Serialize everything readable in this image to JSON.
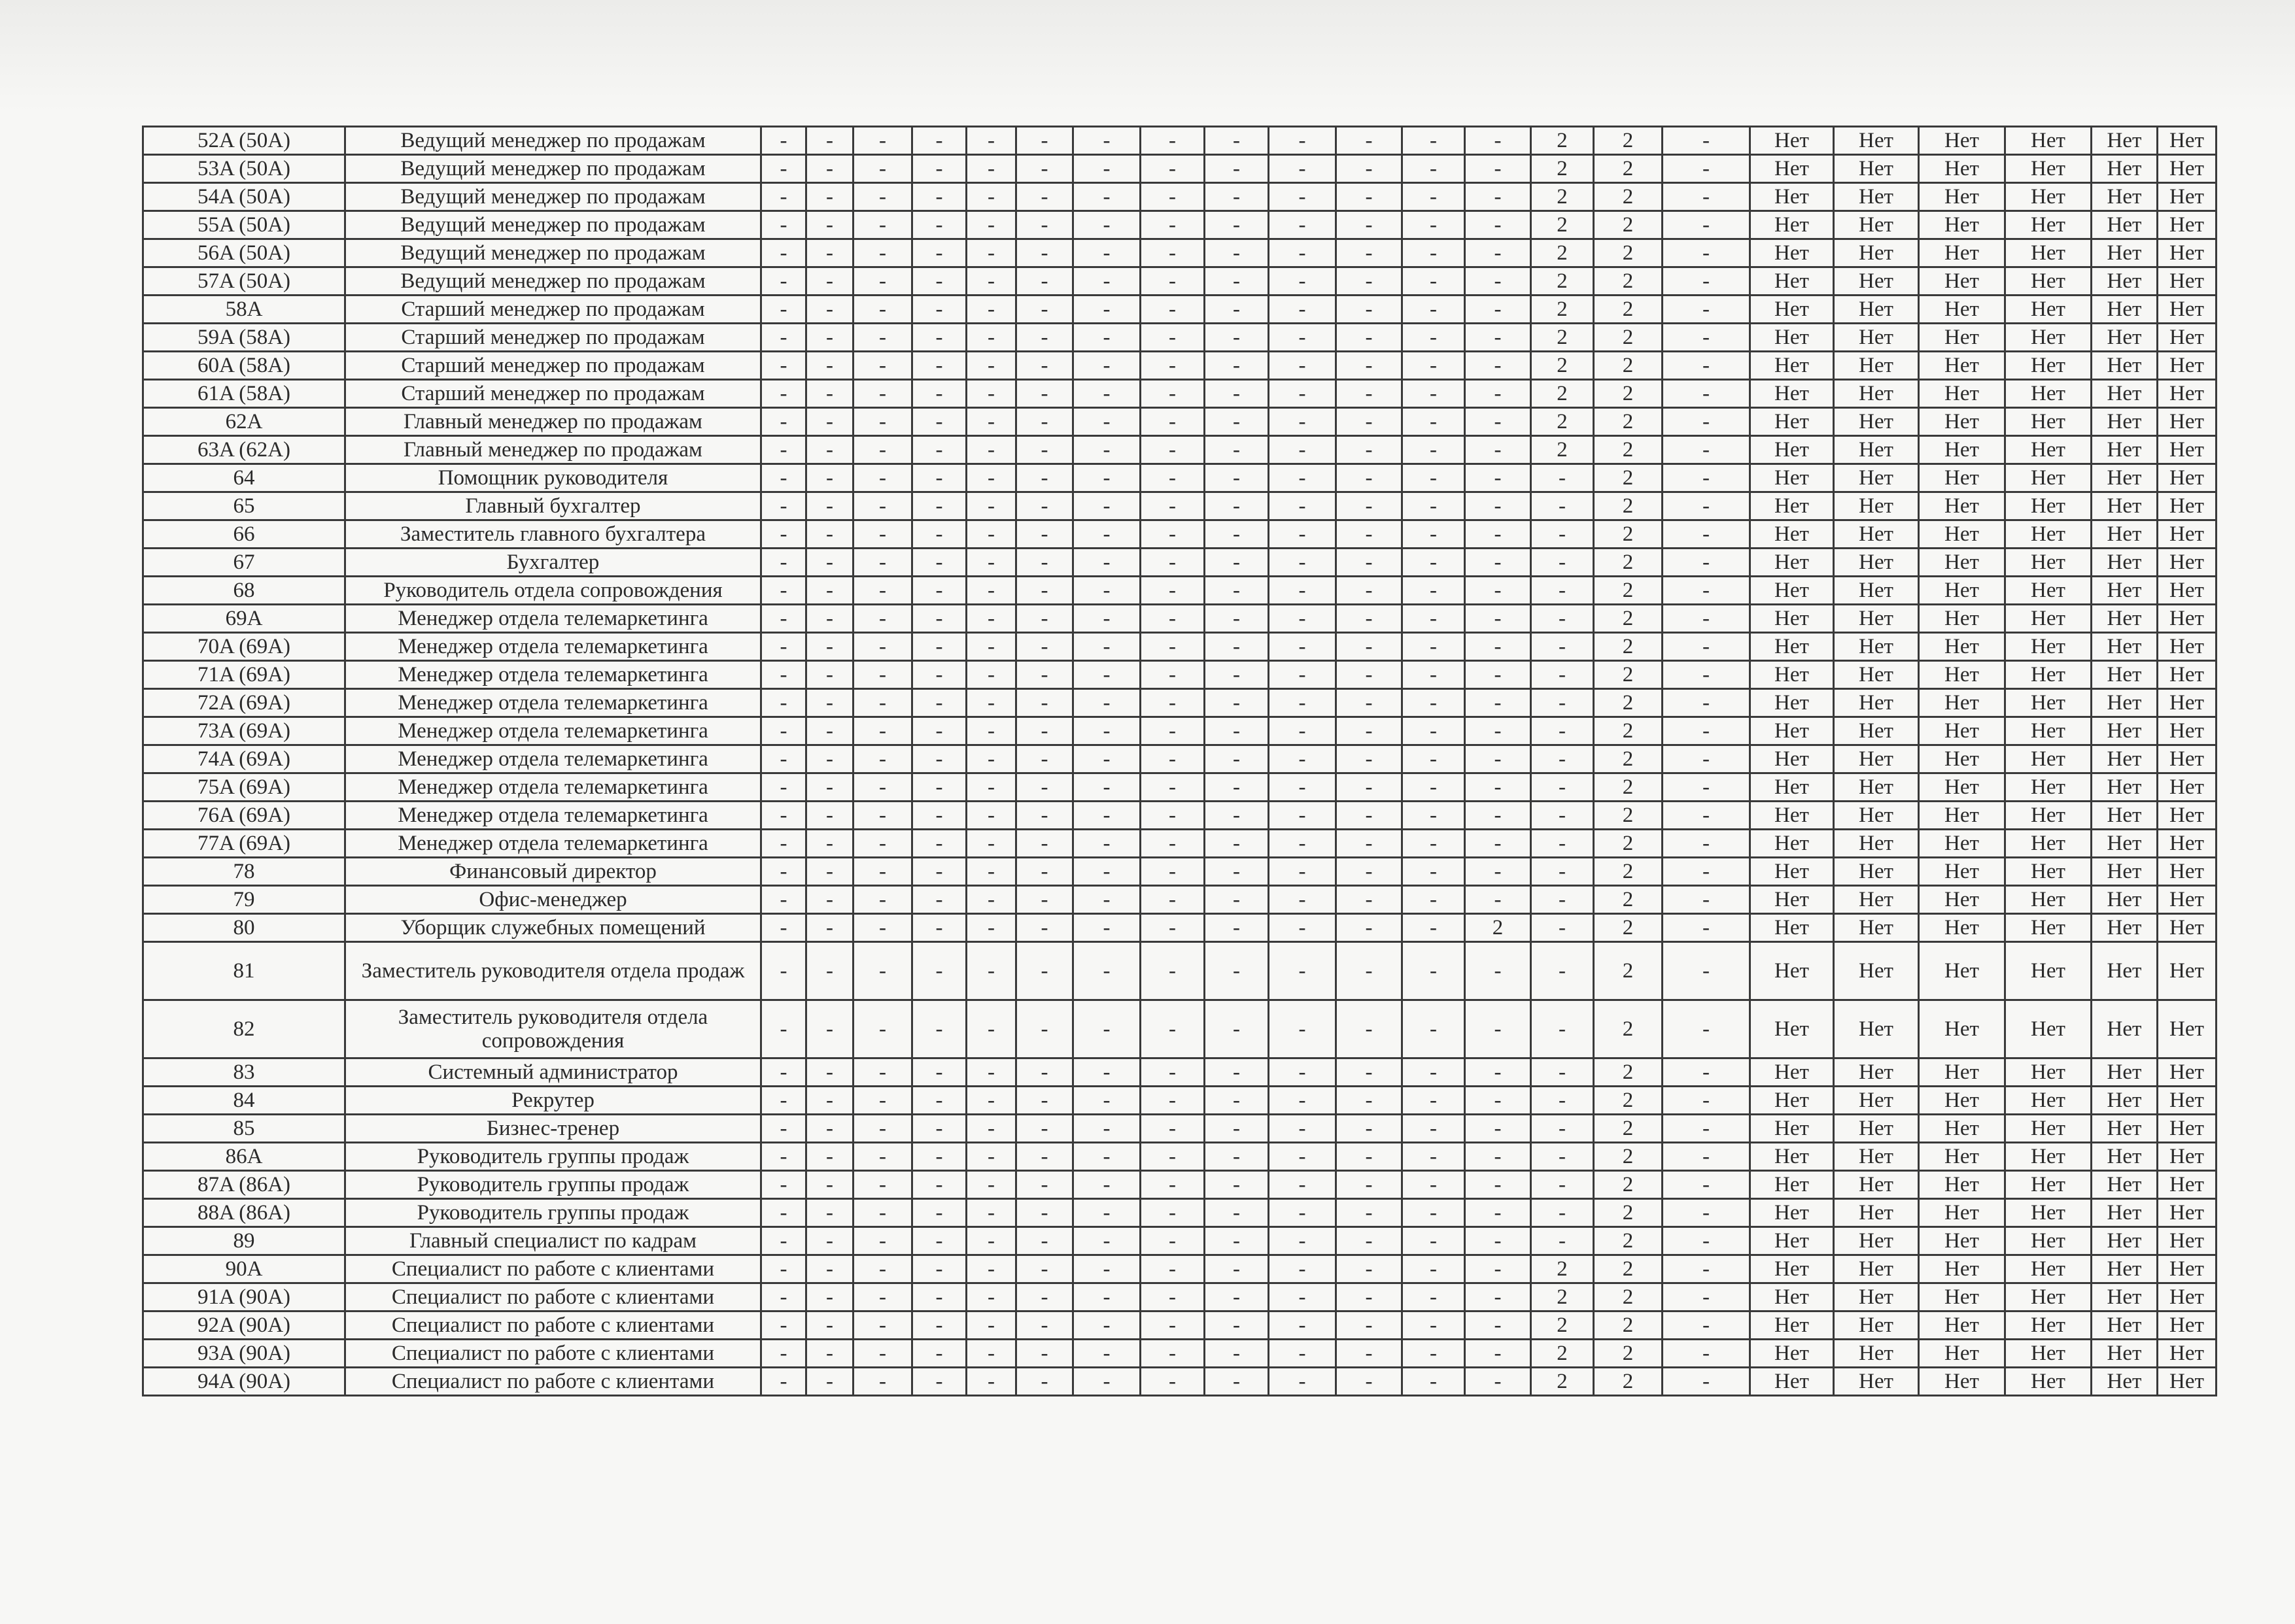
{
  "table": {
    "rows": [
      {
        "id": "52A (50A)",
        "name": "Ведущий менеджер по продажам",
        "cells": [
          "-",
          "-",
          "-",
          "-",
          "-",
          "-",
          "-",
          "-",
          "-",
          "-",
          "-",
          "-",
          "-",
          "2",
          "2",
          "-",
          "Нет",
          "Нет",
          "Нет",
          "Нет",
          "Нет",
          "Нет"
        ]
      },
      {
        "id": "53A (50A)",
        "name": "Ведущий менеджер по продажам",
        "cells": [
          "-",
          "-",
          "-",
          "-",
          "-",
          "-",
          "-",
          "-",
          "-",
          "-",
          "-",
          "-",
          "-",
          "2",
          "2",
          "-",
          "Нет",
          "Нет",
          "Нет",
          "Нет",
          "Нет",
          "Нет"
        ]
      },
      {
        "id": "54A (50A)",
        "name": "Ведущий менеджер по продажам",
        "cells": [
          "-",
          "-",
          "-",
          "-",
          "-",
          "-",
          "-",
          "-",
          "-",
          "-",
          "-",
          "-",
          "-",
          "2",
          "2",
          "-",
          "Нет",
          "Нет",
          "Нет",
          "Нет",
          "Нет",
          "Нет"
        ]
      },
      {
        "id": "55A (50A)",
        "name": "Ведущий менеджер по продажам",
        "cells": [
          "-",
          "-",
          "-",
          "-",
          "-",
          "-",
          "-",
          "-",
          "-",
          "-",
          "-",
          "-",
          "-",
          "2",
          "2",
          "-",
          "Нет",
          "Нет",
          "Нет",
          "Нет",
          "Нет",
          "Нет"
        ]
      },
      {
        "id": "56A (50A)",
        "name": "Ведущий менеджер по продажам",
        "cells": [
          "-",
          "-",
          "-",
          "-",
          "-",
          "-",
          "-",
          "-",
          "-",
          "-",
          "-",
          "-",
          "-",
          "2",
          "2",
          "-",
          "Нет",
          "Нет",
          "Нет",
          "Нет",
          "Нет",
          "Нет"
        ]
      },
      {
        "id": "57A (50A)",
        "name": "Ведущий менеджер по продажам",
        "cells": [
          "-",
          "-",
          "-",
          "-",
          "-",
          "-",
          "-",
          "-",
          "-",
          "-",
          "-",
          "-",
          "-",
          "2",
          "2",
          "-",
          "Нет",
          "Нет",
          "Нет",
          "Нет",
          "Нет",
          "Нет"
        ]
      },
      {
        "id": "58A",
        "name": "Старший менеджер по продажам",
        "cells": [
          "-",
          "-",
          "-",
          "-",
          "-",
          "-",
          "-",
          "-",
          "-",
          "-",
          "-",
          "-",
          "-",
          "2",
          "2",
          "-",
          "Нет",
          "Нет",
          "Нет",
          "Нет",
          "Нет",
          "Нет"
        ]
      },
      {
        "id": "59A (58A)",
        "name": "Старший менеджер по продажам",
        "cells": [
          "-",
          "-",
          "-",
          "-",
          "-",
          "-",
          "-",
          "-",
          "-",
          "-",
          "-",
          "-",
          "-",
          "2",
          "2",
          "-",
          "Нет",
          "Нет",
          "Нет",
          "Нет",
          "Нет",
          "Нет"
        ]
      },
      {
        "id": "60A (58A)",
        "name": "Старший менеджер по продажам",
        "cells": [
          "-",
          "-",
          "-",
          "-",
          "-",
          "-",
          "-",
          "-",
          "-",
          "-",
          "-",
          "-",
          "-",
          "2",
          "2",
          "-",
          "Нет",
          "Нет",
          "Нет",
          "Нет",
          "Нет",
          "Нет"
        ]
      },
      {
        "id": "61A (58A)",
        "name": "Старший менеджер по продажам",
        "cells": [
          "-",
          "-",
          "-",
          "-",
          "-",
          "-",
          "-",
          "-",
          "-",
          "-",
          "-",
          "-",
          "-",
          "2",
          "2",
          "-",
          "Нет",
          "Нет",
          "Нет",
          "Нет",
          "Нет",
          "Нет"
        ]
      },
      {
        "id": "62A",
        "name": "Главный менеджер по продажам",
        "cells": [
          "-",
          "-",
          "-",
          "-",
          "-",
          "-",
          "-",
          "-",
          "-",
          "-",
          "-",
          "-",
          "-",
          "2",
          "2",
          "-",
          "Нет",
          "Нет",
          "Нет",
          "Нет",
          "Нет",
          "Нет"
        ]
      },
      {
        "id": "63A (62A)",
        "name": "Главный менеджер по продажам",
        "cells": [
          "-",
          "-",
          "-",
          "-",
          "-",
          "-",
          "-",
          "-",
          "-",
          "-",
          "-",
          "-",
          "-",
          "2",
          "2",
          "-",
          "Нет",
          "Нет",
          "Нет",
          "Нет",
          "Нет",
          "Нет"
        ]
      },
      {
        "id": "64",
        "name": "Помощник руководителя",
        "cells": [
          "-",
          "-",
          "-",
          "-",
          "-",
          "-",
          "-",
          "-",
          "-",
          "-",
          "-",
          "-",
          "-",
          "-",
          "2",
          "-",
          "Нет",
          "Нет",
          "Нет",
          "Нет",
          "Нет",
          "Нет"
        ]
      },
      {
        "id": "65",
        "name": "Главный бухгалтер",
        "cells": [
          "-",
          "-",
          "-",
          "-",
          "-",
          "-",
          "-",
          "-",
          "-",
          "-",
          "-",
          "-",
          "-",
          "-",
          "2",
          "-",
          "Нет",
          "Нет",
          "Нет",
          "Нет",
          "Нет",
          "Нет"
        ]
      },
      {
        "id": "66",
        "name": "Заместитель главного бухгалтера",
        "cells": [
          "-",
          "-",
          "-",
          "-",
          "-",
          "-",
          "-",
          "-",
          "-",
          "-",
          "-",
          "-",
          "-",
          "-",
          "2",
          "-",
          "Нет",
          "Нет",
          "Нет",
          "Нет",
          "Нет",
          "Нет"
        ]
      },
      {
        "id": "67",
        "name": "Бухгалтер",
        "cells": [
          "-",
          "-",
          "-",
          "-",
          "-",
          "-",
          "-",
          "-",
          "-",
          "-",
          "-",
          "-",
          "-",
          "-",
          "2",
          "-",
          "Нет",
          "Нет",
          "Нет",
          "Нет",
          "Нет",
          "Нет"
        ]
      },
      {
        "id": "68",
        "name": "Руководитель отдела сопровождения",
        "cells": [
          "-",
          "-",
          "-",
          "-",
          "-",
          "-",
          "-",
          "-",
          "-",
          "-",
          "-",
          "-",
          "-",
          "-",
          "2",
          "-",
          "Нет",
          "Нет",
          "Нет",
          "Нет",
          "Нет",
          "Нет"
        ]
      },
      {
        "id": "69A",
        "name": "Менеджер отдела телемаркетинга",
        "cells": [
          "-",
          "-",
          "-",
          "-",
          "-",
          "-",
          "-",
          "-",
          "-",
          "-",
          "-",
          "-",
          "-",
          "-",
          "2",
          "-",
          "Нет",
          "Нет",
          "Нет",
          "Нет",
          "Нет",
          "Нет"
        ]
      },
      {
        "id": "70A (69A)",
        "name": "Менеджер отдела телемаркетинга",
        "cells": [
          "-",
          "-",
          "-",
          "-",
          "-",
          "-",
          "-",
          "-",
          "-",
          "-",
          "-",
          "-",
          "-",
          "-",
          "2",
          "-",
          "Нет",
          "Нет",
          "Нет",
          "Нет",
          "Нет",
          "Нет"
        ]
      },
      {
        "id": "71A (69A)",
        "name": "Менеджер отдела телемаркетинга",
        "cells": [
          "-",
          "-",
          "-",
          "-",
          "-",
          "-",
          "-",
          "-",
          "-",
          "-",
          "-",
          "-",
          "-",
          "-",
          "2",
          "-",
          "Нет",
          "Нет",
          "Нет",
          "Нет",
          "Нет",
          "Нет"
        ]
      },
      {
        "id": "72A (69A)",
        "name": "Менеджер отдела телемаркетинга",
        "cells": [
          "-",
          "-",
          "-",
          "-",
          "-",
          "-",
          "-",
          "-",
          "-",
          "-",
          "-",
          "-",
          "-",
          "-",
          "2",
          "-",
          "Нет",
          "Нет",
          "Нет",
          "Нет",
          "Нет",
          "Нет"
        ]
      },
      {
        "id": "73A (69A)",
        "name": "Менеджер отдела телемаркетинга",
        "cells": [
          "-",
          "-",
          "-",
          "-",
          "-",
          "-",
          "-",
          "-",
          "-",
          "-",
          "-",
          "-",
          "-",
          "-",
          "2",
          "-",
          "Нет",
          "Нет",
          "Нет",
          "Нет",
          "Нет",
          "Нет"
        ]
      },
      {
        "id": "74A (69A)",
        "name": "Менеджер отдела телемаркетинга",
        "cells": [
          "-",
          "-",
          "-",
          "-",
          "-",
          "-",
          "-",
          "-",
          "-",
          "-",
          "-",
          "-",
          "-",
          "-",
          "2",
          "-",
          "Нет",
          "Нет",
          "Нет",
          "Нет",
          "Нет",
          "Нет"
        ]
      },
      {
        "id": "75A (69A)",
        "name": "Менеджер отдела телемаркетинга",
        "cells": [
          "-",
          "-",
          "-",
          "-",
          "-",
          "-",
          "-",
          "-",
          "-",
          "-",
          "-",
          "-",
          "-",
          "-",
          "2",
          "-",
          "Нет",
          "Нет",
          "Нет",
          "Нет",
          "Нет",
          "Нет"
        ]
      },
      {
        "id": "76A (69A)",
        "name": "Менеджер отдела телемаркетинга",
        "cells": [
          "-",
          "-",
          "-",
          "-",
          "-",
          "-",
          "-",
          "-",
          "-",
          "-",
          "-",
          "-",
          "-",
          "-",
          "2",
          "-",
          "Нет",
          "Нет",
          "Нет",
          "Нет",
          "Нет",
          "Нет"
        ]
      },
      {
        "id": "77A (69A)",
        "name": "Менеджер отдела телемаркетинга",
        "cells": [
          "-",
          "-",
          "-",
          "-",
          "-",
          "-",
          "-",
          "-",
          "-",
          "-",
          "-",
          "-",
          "-",
          "-",
          "2",
          "-",
          "Нет",
          "Нет",
          "Нет",
          "Нет",
          "Нет",
          "Нет"
        ]
      },
      {
        "id": "78",
        "name": "Финансовый директор",
        "cells": [
          "-",
          "-",
          "-",
          "-",
          "-",
          "-",
          "-",
          "-",
          "-",
          "-",
          "-",
          "-",
          "-",
          "-",
          "2",
          "-",
          "Нет",
          "Нет",
          "Нет",
          "Нет",
          "Нет",
          "Нет"
        ]
      },
      {
        "id": "79",
        "name": "Офис-менеджер",
        "cells": [
          "-",
          "-",
          "-",
          "-",
          "-",
          "-",
          "-",
          "-",
          "-",
          "-",
          "-",
          "-",
          "-",
          "-",
          "2",
          "-",
          "Нет",
          "Нет",
          "Нет",
          "Нет",
          "Нет",
          "Нет"
        ]
      },
      {
        "id": "80",
        "name": "Уборщик служебных помещений",
        "cells": [
          "-",
          "-",
          "-",
          "-",
          "-",
          "-",
          "-",
          "-",
          "-",
          "-",
          "-",
          "-",
          "2",
          "-",
          "2",
          "-",
          "Нет",
          "Нет",
          "Нет",
          "Нет",
          "Нет",
          "Нет"
        ]
      },
      {
        "id": "81",
        "name": "Заместитель руководителя отдела продаж",
        "double": true,
        "cells": [
          "-",
          "-",
          "-",
          "-",
          "-",
          "-",
          "-",
          "-",
          "-",
          "-",
          "-",
          "-",
          "-",
          "-",
          "2",
          "-",
          "Нет",
          "Нет",
          "Нет",
          "Нет",
          "Нет",
          "Нет"
        ]
      },
      {
        "id": "82",
        "name": "Заместитель руководителя отдела сопровождения",
        "double": true,
        "cells": [
          "-",
          "-",
          "-",
          "-",
          "-",
          "-",
          "-",
          "-",
          "-",
          "-",
          "-",
          "-",
          "-",
          "-",
          "2",
          "-",
          "Нет",
          "Нет",
          "Нет",
          "Нет",
          "Нет",
          "Нет"
        ]
      },
      {
        "id": "83",
        "name": "Системный администратор",
        "cells": [
          "-",
          "-",
          "-",
          "-",
          "-",
          "-",
          "-",
          "-",
          "-",
          "-",
          "-",
          "-",
          "-",
          "-",
          "2",
          "-",
          "Нет",
          "Нет",
          "Нет",
          "Нет",
          "Нет",
          "Нет"
        ]
      },
      {
        "id": "84",
        "name": "Рекрутер",
        "cells": [
          "-",
          "-",
          "-",
          "-",
          "-",
          "-",
          "-",
          "-",
          "-",
          "-",
          "-",
          "-",
          "-",
          "-",
          "2",
          "-",
          "Нет",
          "Нет",
          "Нет",
          "Нет",
          "Нет",
          "Нет"
        ]
      },
      {
        "id": "85",
        "name": "Бизнес-тренер",
        "cells": [
          "-",
          "-",
          "-",
          "-",
          "-",
          "-",
          "-",
          "-",
          "-",
          "-",
          "-",
          "-",
          "-",
          "-",
          "2",
          "-",
          "Нет",
          "Нет",
          "Нет",
          "Нет",
          "Нет",
          "Нет"
        ]
      },
      {
        "id": "86A",
        "name": "Руководитель группы продаж",
        "cells": [
          "-",
          "-",
          "-",
          "-",
          "-",
          "-",
          "-",
          "-",
          "-",
          "-",
          "-",
          "-",
          "-",
          "-",
          "2",
          "-",
          "Нет",
          "Нет",
          "Нет",
          "Нет",
          "Нет",
          "Нет"
        ]
      },
      {
        "id": "87A (86A)",
        "name": "Руководитель группы продаж",
        "cells": [
          "-",
          "-",
          "-",
          "-",
          "-",
          "-",
          "-",
          "-",
          "-",
          "-",
          "-",
          "-",
          "-",
          "-",
          "2",
          "-",
          "Нет",
          "Нет",
          "Нет",
          "Нет",
          "Нет",
          "Нет"
        ]
      },
      {
        "id": "88A (86A)",
        "name": "Руководитель группы продаж",
        "cells": [
          "-",
          "-",
          "-",
          "-",
          "-",
          "-",
          "-",
          "-",
          "-",
          "-",
          "-",
          "-",
          "-",
          "-",
          "2",
          "-",
          "Нет",
          "Нет",
          "Нет",
          "Нет",
          "Нет",
          "Нет"
        ]
      },
      {
        "id": "89",
        "name": "Главный специалист по кадрам",
        "cells": [
          "-",
          "-",
          "-",
          "-",
          "-",
          "-",
          "-",
          "-",
          "-",
          "-",
          "-",
          "-",
          "-",
          "-",
          "2",
          "-",
          "Нет",
          "Нет",
          "Нет",
          "Нет",
          "Нет",
          "Нет"
        ]
      },
      {
        "id": "90A",
        "name": "Специалист по работе с клиентами",
        "cells": [
          "-",
          "-",
          "-",
          "-",
          "-",
          "-",
          "-",
          "-",
          "-",
          "-",
          "-",
          "-",
          "-",
          "2",
          "2",
          "-",
          "Нет",
          "Нет",
          "Нет",
          "Нет",
          "Нет",
          "Нет"
        ]
      },
      {
        "id": "91A (90A)",
        "name": "Специалист по работе с клиентами",
        "cells": [
          "-",
          "-",
          "-",
          "-",
          "-",
          "-",
          "-",
          "-",
          "-",
          "-",
          "-",
          "-",
          "-",
          "2",
          "2",
          "-",
          "Нет",
          "Нет",
          "Нет",
          "Нет",
          "Нет",
          "Нет"
        ]
      },
      {
        "id": "92A (90A)",
        "name": "Специалист по работе с клиентами",
        "cells": [
          "-",
          "-",
          "-",
          "-",
          "-",
          "-",
          "-",
          "-",
          "-",
          "-",
          "-",
          "-",
          "-",
          "2",
          "2",
          "-",
          "Нет",
          "Нет",
          "Нет",
          "Нет",
          "Нет",
          "Нет"
        ]
      },
      {
        "id": "93A (90A)",
        "name": "Специалист по работе с клиентами",
        "cells": [
          "-",
          "-",
          "-",
          "-",
          "-",
          "-",
          "-",
          "-",
          "-",
          "-",
          "-",
          "-",
          "-",
          "2",
          "2",
          "-",
          "Нет",
          "Нет",
          "Нет",
          "Нет",
          "Нет",
          "Нет"
        ]
      },
      {
        "id": "94A (90A)",
        "name": "Специалист по работе с клиентами",
        "cells": [
          "-",
          "-",
          "-",
          "-",
          "-",
          "-",
          "-",
          "-",
          "-",
          "-",
          "-",
          "-",
          "-",
          "2",
          "2",
          "-",
          "Нет",
          "Нет",
          "Нет",
          "Нет",
          "Нет",
          "Нет"
        ]
      }
    ]
  }
}
